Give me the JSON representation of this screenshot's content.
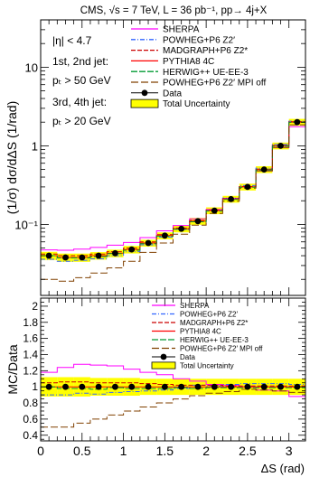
{
  "figure_title": "CMS, √s = 7 TeV, L = 36 pb⁻¹, pp→ 4j+X",
  "xlabel": "ΔS (rad)",
  "chart_data": [
    {
      "type": "step",
      "ylabel": "(1/σ) dσ/dΔS (1/rad)",
      "yscale": "log",
      "ylim": [
        0.0125,
        40
      ],
      "xlim": [
        0,
        3.2
      ],
      "bin_edges": [
        0,
        0.2,
        0.4,
        0.6,
        0.8,
        1.0,
        1.2,
        1.4,
        1.6,
        1.8,
        2.0,
        2.2,
        2.4,
        2.6,
        2.8,
        3.0,
        3.2
      ],
      "x_ticks": [
        "0",
        "0.5",
        "1",
        "1.5",
        "2",
        "2.5",
        "3"
      ],
      "y_ticks": [
        {
          "value": 0.1,
          "label": "10⁻¹"
        },
        {
          "value": 1,
          "label": "1"
        },
        {
          "value": 10,
          "label": "10"
        }
      ],
      "annotations": [
        "|η| < 4.7",
        "1st, 2nd jet:",
        "pₜ > 50 GeV",
        "3rd, 4th jet:",
        "pₜ > 20 GeV"
      ],
      "legend_position": "top-right",
      "data": {
        "name": "Data",
        "x": [
          0.1,
          0.3,
          0.5,
          0.7,
          0.9,
          1.1,
          1.3,
          1.5,
          1.7,
          1.9,
          2.1,
          2.3,
          2.5,
          2.7,
          2.9,
          3.1
        ],
        "y": [
          0.04,
          0.038,
          0.038,
          0.04,
          0.043,
          0.048,
          0.058,
          0.072,
          0.088,
          0.11,
          0.15,
          0.21,
          0.3,
          0.5,
          1.0,
          2.0
        ]
      },
      "uncertainty": {
        "name": "Total Uncertainty",
        "color": "#ffff00",
        "rel": [
          0.12,
          0.12,
          0.12,
          0.11,
          0.11,
          0.11,
          0.1,
          0.1,
          0.1,
          0.1,
          0.1,
          0.1,
          0.1,
          0.1,
          0.1,
          0.1
        ]
      },
      "series": [
        {
          "name": "SHERPA",
          "color": "#ff00ff",
          "dash": "",
          "values": [
            0.0475,
            0.047,
            0.0485,
            0.051,
            0.0545,
            0.059,
            0.068,
            0.083,
            0.097,
            0.118,
            0.155,
            0.215,
            0.3,
            0.48,
            0.95,
            1.75
          ]
        },
        {
          "name": "POWHEG+P6 Z2′",
          "color": "#3366ff",
          "dash": "5,2,1,2",
          "values": [
            0.036,
            0.034,
            0.035,
            0.0365,
            0.04,
            0.045,
            0.055,
            0.069,
            0.086,
            0.112,
            0.152,
            0.216,
            0.312,
            0.52,
            1.04,
            2.06
          ]
        },
        {
          "name": "MADGRAPH+P6 Z2*",
          "color": "#cc0000",
          "dash": "5,2",
          "values": [
            0.042,
            0.04,
            0.04,
            0.042,
            0.045,
            0.05,
            0.06,
            0.074,
            0.09,
            0.112,
            0.152,
            0.212,
            0.303,
            0.505,
            1.01,
            2.02
          ]
        },
        {
          "name": "PYTHIA8 4C",
          "color": "#ff0000",
          "dash": "",
          "values": [
            0.04,
            0.038,
            0.038,
            0.04,
            0.043,
            0.048,
            0.058,
            0.072,
            0.088,
            0.11,
            0.15,
            0.21,
            0.3,
            0.5,
            1.0,
            2.0
          ]
        },
        {
          "name": "HERWIG++ UE-EE-3",
          "color": "#009933",
          "dash": "7,2",
          "values": [
            0.04,
            0.0375,
            0.0375,
            0.039,
            0.0425,
            0.047,
            0.057,
            0.071,
            0.087,
            0.108,
            0.148,
            0.208,
            0.298,
            0.495,
            0.99,
            1.99
          ]
        },
        {
          "name": "POWHEG+P6 Z2′ MPI off",
          "color": "#804000",
          "dash": "8,3",
          "values": [
            0.02,
            0.019,
            0.021,
            0.024,
            0.028,
            0.034,
            0.044,
            0.058,
            0.075,
            0.098,
            0.138,
            0.198,
            0.29,
            0.48,
            0.95,
            1.85
          ]
        }
      ]
    },
    {
      "type": "step",
      "ylabel": "MC/Data",
      "ylim": [
        0.33,
        2.1
      ],
      "xlim": [
        0,
        3.2
      ],
      "bin_edges": [
        0,
        0.2,
        0.4,
        0.6,
        0.8,
        1.0,
        1.2,
        1.4,
        1.6,
        1.8,
        2.0,
        2.2,
        2.4,
        2.6,
        2.8,
        3.0,
        3.2
      ],
      "x_ticks": [
        "0",
        "0.5",
        "1",
        "1.5",
        "2",
        "2.5",
        "3"
      ],
      "y_ticks": [
        "0.4",
        "0.6",
        "0.8",
        "1",
        "1.2",
        "1.4",
        "1.6",
        "1.8",
        "2"
      ],
      "legend_position": "top-right",
      "data": {
        "name": "Data",
        "x": [
          0.1,
          0.3,
          0.5,
          0.7,
          0.9,
          1.1,
          1.3,
          1.5,
          1.7,
          1.9,
          2.1,
          2.3,
          2.5,
          2.7,
          2.9,
          3.1
        ],
        "y": [
          1,
          1,
          1,
          1,
          1,
          1,
          1,
          1,
          1,
          1,
          1,
          1,
          1,
          1,
          1,
          1
        ]
      },
      "uncertainty": {
        "name": "Total Uncertainty",
        "color": "#ffff00",
        "rel": [
          0.12,
          0.12,
          0.12,
          0.11,
          0.11,
          0.11,
          0.1,
          0.1,
          0.1,
          0.1,
          0.1,
          0.1,
          0.1,
          0.1,
          0.1,
          0.1
        ]
      },
      "series": [
        {
          "name": "SHERPA",
          "color": "#ff00ff",
          "dash": "",
          "values": [
            1.18,
            1.24,
            1.28,
            1.27,
            1.26,
            1.22,
            1.18,
            1.15,
            1.1,
            1.07,
            1.03,
            1.02,
            1.0,
            0.96,
            0.95,
            0.88
          ]
        },
        {
          "name": "POWHEG+P6 Z2′",
          "color": "#3366ff",
          "dash": "5,2,1,2",
          "values": [
            0.9,
            0.9,
            0.92,
            0.91,
            0.93,
            0.94,
            0.95,
            0.96,
            0.98,
            1.02,
            1.01,
            1.03,
            1.04,
            1.04,
            1.04,
            1.03
          ]
        },
        {
          "name": "MADGRAPH+P6 Z2*",
          "color": "#cc0000",
          "dash": "5,2",
          "values": [
            1.05,
            1.06,
            1.06,
            1.05,
            1.05,
            1.05,
            1.04,
            1.03,
            1.02,
            1.02,
            1.02,
            1.01,
            1.01,
            1.01,
            1.01,
            1.01
          ]
        },
        {
          "name": "PYTHIA8 4C",
          "color": "#ff0000",
          "dash": "",
          "values": [
            1.0,
            1.0,
            1.0,
            1.0,
            1.0,
            1.0,
            1.0,
            1.0,
            1.0,
            1.0,
            1.0,
            1.0,
            1.0,
            1.0,
            1.0,
            1.0
          ]
        },
        {
          "name": "HERWIG++ UE-EE-3",
          "color": "#009933",
          "dash": "7,2",
          "values": [
            1.0,
            0.98,
            0.98,
            0.97,
            0.99,
            0.98,
            0.98,
            0.98,
            0.99,
            0.98,
            0.99,
            0.99,
            0.99,
            0.99,
            0.99,
            0.99
          ]
        },
        {
          "name": "POWHEG+P6 Z2′ MPI off",
          "color": "#804000",
          "dash": "8,3",
          "values": [
            0.5,
            0.5,
            0.55,
            0.6,
            0.65,
            0.7,
            0.75,
            0.8,
            0.85,
            0.89,
            0.92,
            0.94,
            0.97,
            0.96,
            0.95,
            0.93
          ]
        }
      ]
    }
  ]
}
